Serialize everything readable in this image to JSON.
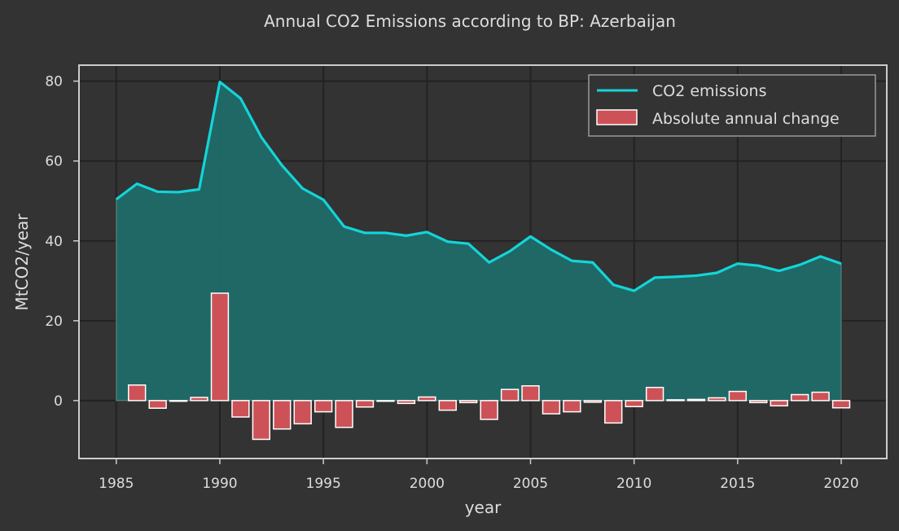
{
  "colors": {
    "background": "#333333",
    "frame": "#cccccc",
    "grid": "#222222",
    "line": "#14d4d8",
    "area": "#1f6b69",
    "bar_fill": "#cd5257",
    "bar_edge": "#ffffff",
    "text": "#dddddd"
  },
  "chart_data": {
    "type": "line",
    "title": "Annual CO2 Emissions according to BP: Azerbaijan",
    "xlabel": "year",
    "ylabel": "MtCO2/year",
    "xlim": [
      1983.2,
      2022.2
    ],
    "ylim": [
      -14.5,
      84
    ],
    "xticks": [
      1985,
      1990,
      1995,
      2000,
      2005,
      2010,
      2015,
      2020
    ],
    "yticks": [
      0,
      20,
      40,
      60,
      80
    ],
    "grid": true,
    "legend_position": "top-right",
    "x": [
      1985,
      1986,
      1987,
      1988,
      1989,
      1990,
      1991,
      1992,
      1993,
      1994,
      1995,
      1996,
      1997,
      1998,
      1999,
      2000,
      2001,
      2002,
      2003,
      2004,
      2005,
      2006,
      2007,
      2008,
      2009,
      2010,
      2011,
      2012,
      2013,
      2014,
      2015,
      2016,
      2017,
      2018,
      2019,
      2020
    ],
    "series": [
      {
        "name": "CO2 emissions",
        "kind": "line-area",
        "values": [
          50.4,
          54.3,
          52.3,
          52.2,
          52.9,
          79.8,
          75.7,
          66.0,
          58.9,
          53.1,
          50.3,
          43.6,
          42.0,
          42.0,
          41.3,
          42.2,
          39.8,
          39.3,
          34.6,
          37.4,
          41.1,
          37.8,
          35.0,
          34.6,
          29.0,
          27.5,
          30.8,
          31.0,
          31.3,
          32.0,
          34.3,
          33.8,
          32.5,
          34.0,
          36.1,
          34.3
        ]
      },
      {
        "name": "Absolute annual change",
        "kind": "bar",
        "values": [
          null,
          3.9,
          -1.9,
          -0.1,
          0.8,
          26.9,
          -4.1,
          -9.7,
          -7.1,
          -5.8,
          -2.8,
          -6.7,
          -1.6,
          0.0,
          -0.7,
          0.9,
          -2.4,
          -0.5,
          -4.7,
          2.8,
          3.7,
          -3.3,
          -2.8,
          -0.4,
          -5.6,
          -1.5,
          3.3,
          0.2,
          0.3,
          0.7,
          2.3,
          -0.5,
          -1.3,
          1.5,
          2.1,
          -1.8
        ]
      }
    ]
  }
}
